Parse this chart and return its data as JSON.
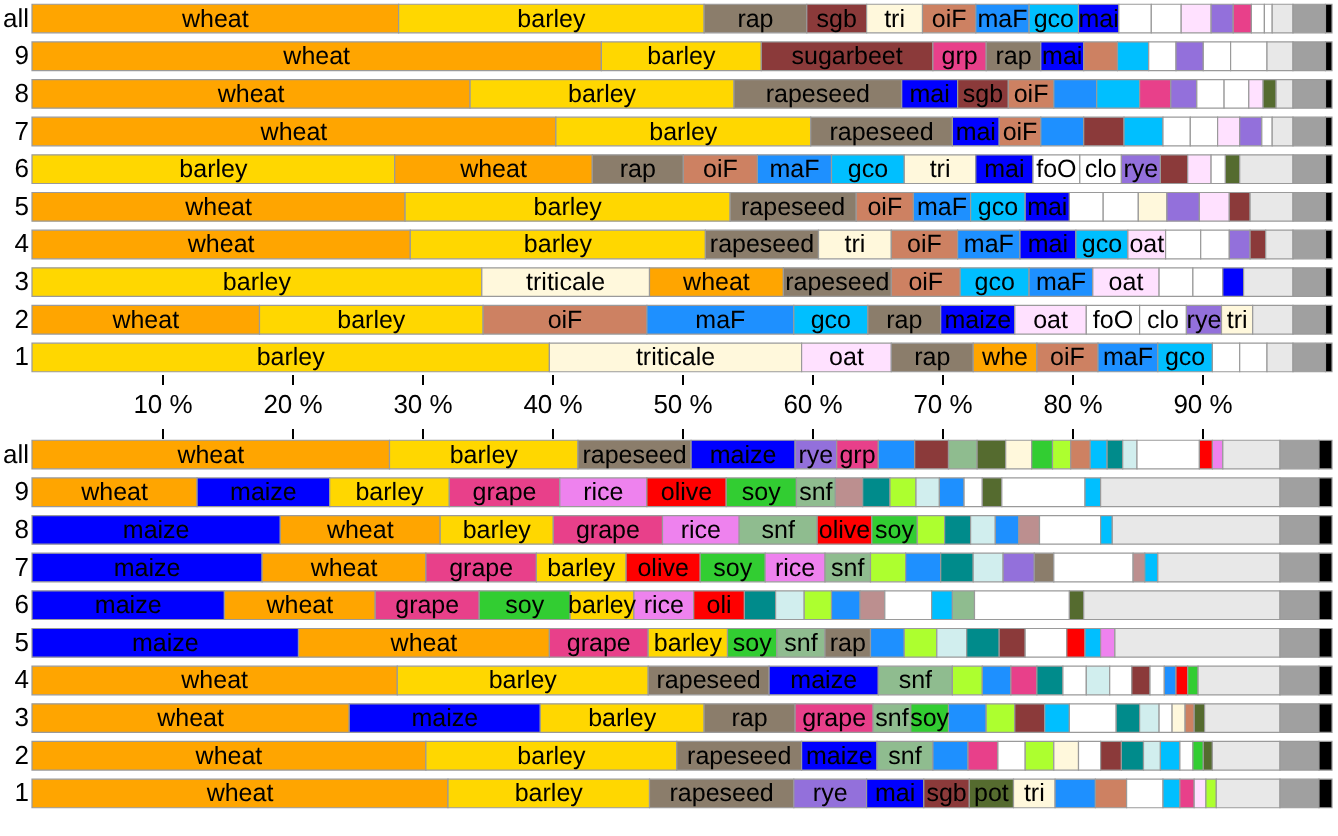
{
  "chart_data": [
    {
      "type": "bar",
      "orientation": "horizontal",
      "stacked": true,
      "categories": [
        "all",
        "9",
        "8",
        "7",
        "6",
        "5",
        "4",
        "3",
        "2",
        "1"
      ],
      "xlim": [
        0,
        100
      ],
      "xticks": [
        {
          "value": 10,
          "label": "10 %"
        },
        {
          "value": 20,
          "label": "20 %"
        },
        {
          "value": 30,
          "label": "30 %"
        },
        {
          "value": 40,
          "label": "40 %"
        },
        {
          "value": 50,
          "label": "50 %"
        },
        {
          "value": 60,
          "label": "60 %"
        },
        {
          "value": 70,
          "label": "70 %"
        },
        {
          "value": 80,
          "label": "80 %"
        },
        {
          "value": 90,
          "label": "90 %"
        }
      ],
      "series": [
        {
          "values": [
            28.2,
            43.8,
            33.7,
            40.3,
            27.9,
            28.7,
            29.1,
            34.6,
            17.5,
            39.8
          ],
          "colors": [
            "#ffa500",
            "#ffa500",
            "#ffa500",
            "#ffa500",
            "#ffd700",
            "#ffa500",
            "#ffa500",
            "#ffd700",
            "#ffa500",
            "#ffd700"
          ],
          "value_labels": [
            "wheat",
            "wheat",
            "wheat",
            "wheat",
            "barley",
            "wheat",
            "wheat",
            "barley",
            "wheat",
            "barley"
          ]
        },
        {
          "values": [
            23.5,
            12.3,
            20.3,
            19.6,
            15.2,
            25.0,
            22.7,
            12.9,
            17.2,
            19.4
          ],
          "colors": [
            "#ffd700",
            "#ffd700",
            "#ffd700",
            "#ffd700",
            "#ffa500",
            "#ffd700",
            "#ffd700",
            "#fff8dc",
            "#ffd700",
            "#fff8dc"
          ],
          "value_labels": [
            "barley",
            "barley",
            "barley",
            "barley",
            "wheat",
            "barley",
            "barley",
            "triticale",
            "barley",
            "triticale"
          ]
        },
        {
          "values": [
            7.9,
            13.2,
            12.9,
            10.9,
            7.0,
            9.7,
            8.7,
            10.3,
            12.6,
            6.9
          ],
          "colors": [
            "#8b7d6b",
            "#8b3a3a",
            "#8b7d6b",
            "#8b7d6b",
            "#8b7d6b",
            "#8b7d6b",
            "#8b7d6b",
            "#ffa500",
            "#cd8162",
            "#ffe1ff"
          ],
          "value_labels": [
            "rap",
            "sugarbeet",
            "rapeseed",
            "rapeseed",
            "rap",
            "rapeseed",
            "rapeseed",
            "wheat",
            "oiF",
            "oat"
          ]
        },
        {
          "values": [
            4.6,
            4.1,
            4.3,
            3.6,
            5.7,
            4.4,
            5.6,
            8.3,
            11.3,
            6.3
          ],
          "colors": [
            "#8b3a3a",
            "#e8408a",
            "#0000ff",
            "#0000ff",
            "#cd8162",
            "#cd8162",
            "#fff8dc",
            "#8b7d6b",
            "#1e90ff",
            "#8b7d6b"
          ],
          "value_labels": [
            "sgb",
            "grp",
            "mai",
            "mai",
            "oiF",
            "oiF",
            "tri",
            "rapeseed",
            "maF",
            "rap"
          ]
        },
        {
          "values": [
            4.3,
            4.2,
            3.9,
            3.2,
            5.7,
            4.4,
            5.1,
            5.3,
            5.7,
            4.9
          ],
          "colors": [
            "#fff8dc",
            "#8b7d6b",
            "#8b3a3a",
            "#cd8162",
            "#1e90ff",
            "#1e90ff",
            "#cd8162",
            "#cd8162",
            "#00bfff",
            "#ffa500"
          ],
          "value_labels": [
            "tri",
            "rap",
            "sgb",
            "oiF",
            "maF",
            "maF",
            "oiF",
            "oiF",
            "gco",
            "whe"
          ]
        },
        {
          "values": [
            4.1,
            3.3,
            3.5,
            3.3,
            5.6,
            4.2,
            4.8,
            5.3,
            5.6,
            4.7
          ],
          "colors": [
            "#cd8162",
            "#0000ff",
            "#cd8162",
            "#1e90ff",
            "#00bfff",
            "#00bfff",
            "#1e90ff",
            "#00bfff",
            "#8b7d6b",
            "#cd8162"
          ],
          "value_labels": [
            "oiF",
            "mai",
            "oiF",
            null,
            "gco",
            "gco",
            "maF",
            "gco",
            "rap",
            "oiF"
          ]
        },
        {
          "values": [
            4.1,
            2.6,
            3.3,
            3.1,
            5.5,
            3.4,
            4.3,
            4.9,
            5.7,
            4.6
          ],
          "colors": [
            "#1e90ff",
            "#cd8162",
            "#1e90ff",
            "#8b3a3a",
            "#fff8dc",
            "#0000ff",
            "#0000ff",
            "#1e90ff",
            "#0000ff",
            "#1e90ff"
          ],
          "value_labels": [
            "maF",
            null,
            null,
            null,
            "tri",
            "mai",
            "mai",
            "maF",
            "maize",
            "maF"
          ]
        },
        {
          "values": [
            3.8,
            2.4,
            3.3,
            3.0,
            4.4,
            2.6,
            4.0,
            5.1,
            5.5,
            4.2
          ],
          "colors": [
            "#00bfff",
            "#00bfff",
            "#00bfff",
            "#00bfff",
            "#0000ff",
            "#ffffff",
            "#00bfff",
            "#ffe1ff",
            "#ffe1ff",
            "#00bfff"
          ],
          "value_labels": [
            "gco",
            null,
            null,
            null,
            "mai",
            null,
            "gco",
            "oat",
            "oat",
            "gco"
          ]
        },
        {
          "values": [
            3.1,
            2.1,
            2.4,
            2.1,
            3.6,
            2.7,
            2.9,
            2.6,
            4.1,
            2.1
          ],
          "colors": [
            "#0000ff",
            "#ffffff",
            "#e8408a",
            "#ffffff",
            "#ffffff",
            "#ffffff",
            "#ffe1ff",
            "#ffffff",
            "#ffffff",
            "#ffffff"
          ],
          "value_labels": [
            "mai",
            null,
            null,
            null,
            "foO",
            null,
            "oat",
            null,
            "foO",
            null
          ]
        },
        {
          "values": [
            2.5,
            2.1,
            2.0,
            2.1,
            3.2,
            2.2,
            2.7,
            2.3,
            3.6,
            2.1
          ],
          "colors": [
            "#ffffff",
            "#9370db",
            "#9370db",
            "#ffffff",
            "#ffffff",
            "#fff8dc",
            "#ffffff",
            "#ffffff",
            "#ffffff",
            "#ffffff"
          ],
          "value_labels": [
            null,
            null,
            null,
            null,
            "clo",
            null,
            null,
            null,
            "clo",
            null
          ]
        },
        {
          "values": [
            2.3,
            2.1,
            2.1,
            1.7,
            3.0,
            2.5,
            2.2,
            1.6,
            2.7,
            null
          ],
          "colors": [
            "#ffffff",
            "#ffffff",
            "#ffffff",
            "#ffe1ff",
            "#9370db",
            "#9370db",
            "#ffffff",
            "#0000ff",
            "#9370db",
            null
          ],
          "value_labels": [
            null,
            null,
            null,
            null,
            "rye",
            null,
            null,
            null,
            "rye",
            null
          ]
        },
        {
          "values": [
            2.3,
            2.8,
            1.9,
            1.7,
            2.1,
            2.3,
            1.6,
            null,
            2.4,
            null
          ],
          "colors": [
            "#ffe1ff",
            "#ffffff",
            "#ffffff",
            "#9370db",
            "#8b3a3a",
            "#ffe1ff",
            "#9370db",
            null,
            "#fff8dc",
            null
          ],
          "value_labels": [
            null,
            null,
            null,
            null,
            null,
            null,
            null,
            null,
            "tri",
            null
          ]
        },
        {
          "values": [
            1.7,
            null,
            1.1,
            0.8,
            1.8,
            1.6,
            1.2,
            null,
            null,
            null
          ],
          "colors": [
            "#9370db",
            null,
            "#ffe1ff",
            "#ffffff",
            "#ffe1ff",
            "#8b3a3a",
            "#8b3a3a",
            null,
            null,
            null
          ]
        },
        {
          "values": [
            1.4,
            null,
            1.0,
            null,
            1.1,
            null,
            null,
            null,
            null,
            null
          ],
          "colors": [
            "#e8408a",
            null,
            "#556b2f",
            null,
            "#ffffff",
            null,
            null,
            null,
            null,
            null
          ]
        },
        {
          "values": [
            1.0,
            null,
            null,
            null,
            1.1,
            null,
            null,
            null,
            null,
            null
          ],
          "colors": [
            "#ffffff",
            null,
            null,
            null,
            "#556b2f",
            null,
            null,
            null,
            null,
            null
          ]
        },
        {
          "values": [
            0.6,
            null,
            null,
            null,
            null,
            null,
            null,
            null,
            null,
            null
          ],
          "colors": [
            "#ffffff",
            null,
            null,
            null,
            null,
            null,
            null,
            null,
            null,
            null
          ]
        },
        {
          "values": [
            1.6,
            2.0,
            1.3,
            1.6,
            4.1,
            3.3,
            2.1,
            3.8,
            3.1,
            2.0
          ],
          "colors": [
            "#e8e8e8",
            "#e8e8e8",
            "#e8e8e8",
            "#e8e8e8",
            "#e8e8e8",
            "#e8e8e8",
            "#e8e8e8",
            "#e8e8e8",
            "#e8e8e8",
            "#e8e8e8"
          ]
        },
        {
          "values": [
            2.5,
            2.5,
            2.5,
            2.5,
            2.5,
            2.5,
            2.5,
            2.5,
            2.5,
            2.5
          ],
          "colors": [
            "#a0a0a0",
            "#a0a0a0",
            "#a0a0a0",
            "#a0a0a0",
            "#a0a0a0",
            "#a0a0a0",
            "#a0a0a0",
            "#a0a0a0",
            "#a0a0a0",
            "#a0a0a0"
          ]
        },
        {
          "values": [
            0.5,
            0.5,
            0.5,
            0.5,
            0.5,
            0.5,
            0.5,
            0.5,
            0.5,
            0.5
          ],
          "colors": [
            "#000000",
            "#000000",
            "#000000",
            "#000000",
            "#000000",
            "#000000",
            "#000000",
            "#000000",
            "#000000",
            "#000000"
          ]
        }
      ]
    },
    {
      "type": "bar",
      "orientation": "horizontal",
      "stacked": true,
      "tick_labels": "y",
      "categories": [
        "all",
        "9",
        "8",
        "7",
        "6",
        "5",
        "4",
        "3",
        "2",
        "1"
      ],
      "xlim": [
        0,
        100
      ],
      "xticks": [
        {
          "value": 10,
          "label": null
        },
        {
          "value": 20,
          "label": null
        },
        {
          "value": 30,
          "label": null
        },
        {
          "value": 40,
          "label": null
        },
        {
          "value": 50,
          "label": null
        },
        {
          "value": 60,
          "label": null
        },
        {
          "value": 70,
          "label": null
        },
        {
          "value": 80,
          "label": null
        },
        {
          "value": 90,
          "label": null
        }
      ],
      "series": [
        {
          "values": [
            27.5,
            12.7,
            19.1,
            17.7,
            14.8,
            20.5,
            28.1,
            24.4,
            30.3,
            32.0
          ],
          "colors": [
            "#ffa500",
            "#ffa500",
            "#0000ff",
            "#0000ff",
            "#0000ff",
            "#0000ff",
            "#ffa500",
            "#ffa500",
            "#ffa500",
            "#ffa500"
          ],
          "value_labels": [
            "wheat",
            "wheat",
            "maize",
            "maize",
            "maize",
            "maize",
            "wheat",
            "wheat",
            "wheat",
            "wheat"
          ]
        },
        {
          "values": [
            14.5,
            10.2,
            12.3,
            12.6,
            11.6,
            19.3,
            19.3,
            14.7,
            19.3,
            15.5
          ],
          "colors": [
            "#ffd700",
            "#0000ff",
            "#ffa500",
            "#ffa500",
            "#ffa500",
            "#ffa500",
            "#ffd700",
            "#0000ff",
            "#ffd700",
            "#ffd700"
          ],
          "value_labels": [
            "barley",
            "maize",
            "wheat",
            "wheat",
            "wheat",
            "wheat",
            "barley",
            "maize",
            "barley",
            "barley"
          ]
        },
        {
          "values": [
            8.7,
            9.2,
            8.7,
            8.5,
            8.0,
            7.6,
            9.3,
            12.6,
            9.6,
            11.1
          ],
          "colors": [
            "#8b7d6b",
            "#ffd700",
            "#ffd700",
            "#e8408a",
            "#e8408a",
            "#e8408a",
            "#8b7d6b",
            "#ffd700",
            "#8b7d6b",
            "#8b7d6b"
          ],
          "value_labels": [
            "rapeseed",
            "barley",
            "barley",
            "grape",
            "grape",
            "grape",
            "rapeseed",
            "barley",
            "rapeseed",
            "rapeseed"
          ]
        },
        {
          "values": [
            8.0,
            8.5,
            8.4,
            6.9,
            7.0,
            6.1,
            8.4,
            7.0,
            5.8,
            5.6
          ],
          "colors": [
            "#0000ff",
            "#e8408a",
            "#e8408a",
            "#ffd700",
            "#32cd32",
            "#ffd700",
            "#0000ff",
            "#8b7d6b",
            "#0000ff",
            "#9370db"
          ],
          "value_labels": [
            "maize",
            "grape",
            "grape",
            "barley",
            "soy",
            "barley",
            "maize",
            "rap",
            "maize",
            "rye"
          ]
        },
        {
          "values": [
            3.2,
            6.7,
            5.9,
            5.7,
            4.9,
            3.8,
            5.7,
            6.0,
            4.3,
            4.4
          ],
          "colors": [
            "#9370db",
            "#ee82ee",
            "#ee82ee",
            "#ff0000",
            "#ffd700",
            "#32cd32",
            "#8fbc8f",
            "#e8408a",
            "#8fbc8f",
            "#0000ff"
          ],
          "value_labels": [
            "rye",
            "rice",
            "rice",
            "olive",
            "barley",
            "soy",
            "snf",
            "grape",
            "snf",
            "mai"
          ]
        },
        {
          "values": [
            3.2,
            6.1,
            6.0,
            5.0,
            4.6,
            3.7,
            2.3,
            2.9,
            2.7,
            3.5
          ],
          "colors": [
            "#e8408a",
            "#ff0000",
            "#8fbc8f",
            "#32cd32",
            "#ee82ee",
            "#8fbc8f",
            "#adff2f",
            "#8fbc8f",
            "#1e90ff",
            "#8b3a3a"
          ],
          "value_labels": [
            "grp",
            "olive",
            "snf",
            "soy",
            "rice",
            "snf",
            null,
            "snf",
            null,
            "sgb"
          ]
        },
        {
          "values": [
            2.8,
            5.4,
            4.2,
            4.6,
            3.9,
            3.5,
            2.2,
            2.9,
            2.3,
            3.4
          ],
          "colors": [
            "#1e90ff",
            "#32cd32",
            "#ff0000",
            "#ee82ee",
            "#ff0000",
            "#8b7d6b",
            "#1e90ff",
            "#32cd32",
            "#e8408a",
            "#556b2f"
          ],
          "value_labels": [
            null,
            "soy",
            "olive",
            "rice",
            "oli",
            "rap",
            null,
            "soy",
            null,
            "pot"
          ]
        },
        {
          "values": [
            2.6,
            3.0,
            3.5,
            3.5,
            2.4,
            2.6,
            2.0,
            2.9,
            2.1,
            3.2
          ],
          "colors": [
            "#8b3a3a",
            "#8fbc8f",
            "#32cd32",
            "#8fbc8f",
            "#008b8b",
            "#1e90ff",
            "#e8408a",
            "#1e90ff",
            "#ffffff",
            "#fff8dc"
          ],
          "value_labels": [
            null,
            "snf",
            "soy",
            "snf",
            null,
            null,
            null,
            null,
            null,
            "tri"
          ]
        },
        {
          "values": [
            2.2,
            2.1,
            2.1,
            2.7,
            2.2,
            2.5,
            2.0,
            2.2,
            2.2,
            3.1
          ],
          "colors": [
            "#8fbc8f",
            "#bc8f8f",
            "#adff2f",
            "#adff2f",
            "#d1eeee",
            "#adff2f",
            "#008b8b",
            "#adff2f",
            "#adff2f",
            "#1e90ff"
          ]
        },
        {
          "values": [
            2.2,
            2.1,
            2.0,
            2.7,
            2.1,
            2.3,
            1.8,
            2.3,
            1.9,
            2.4
          ],
          "colors": [
            "#556b2f",
            "#008b8b",
            "#008b8b",
            "#1e90ff",
            "#adff2f",
            "#d1eeee",
            "#ffffff",
            "#8b3a3a",
            "#fff8dc",
            "#cd8162"
          ]
        },
        {
          "values": [
            2.0,
            2.0,
            1.9,
            2.5,
            2.2,
            2.5,
            1.8,
            1.9,
            1.7,
            2.8
          ],
          "colors": [
            "#fff8dc",
            "#adff2f",
            "#d1eeee",
            "#008b8b",
            "#1e90ff",
            "#008b8b",
            "#d1eeee",
            "#00bfff",
            "#ffffff",
            "#ffffff"
          ]
        },
        {
          "values": [
            1.6,
            1.8,
            1.8,
            2.3,
            1.9,
            2.0,
            1.7,
            3.6,
            1.6,
            1.3
          ],
          "colors": [
            "#32cd32",
            "#d1eeee",
            "#1e90ff",
            "#d1eeee",
            "#bc8f8f",
            "#8b3a3a",
            "#ffffff",
            "#ffffff",
            "#8b3a3a",
            "#00bfff"
          ]
        },
        {
          "values": [
            1.4,
            1.9,
            1.6,
            2.4,
            3.6,
            3.2,
            1.4,
            1.8,
            1.7,
            1.1
          ],
          "colors": [
            "#adff2f",
            "#1e90ff",
            "#bc8f8f",
            "#9370db",
            "#ffffff",
            "#ffffff",
            "#8b3a3a",
            "#008b8b",
            "#008b8b",
            "#e8408a"
          ]
        },
        {
          "values": [
            1.5,
            1.4,
            4.7,
            1.5,
            1.6,
            1.4,
            1.1,
            1.5,
            1.3,
            0.9
          ],
          "colors": [
            "#cd8162",
            "#ffffff",
            "#ffffff",
            "#8b7d6b",
            "#00bfff",
            "#ff0000",
            "#ffffff",
            "#d1eeee",
            "#d1eeee",
            "#ffe1ff"
          ]
        },
        {
          "values": [
            1.3,
            1.5,
            0.9,
            6.1,
            1.7,
            1.2,
            0.9,
            1.0,
            1.5,
            0.8
          ],
          "colors": [
            "#00bfff",
            "#556b2f",
            "#00bfff",
            "#ffffff",
            "#8fbc8f",
            "#00bfff",
            "#1e90ff",
            "#ffffff",
            "#00bfff",
            "#adff2f"
          ]
        },
        {
          "values": [
            1.2,
            6.4,
            null,
            0.9,
            7.3,
            1.1,
            0.9,
            1.0,
            1.0,
            null
          ],
          "colors": [
            "#008b8b",
            "#ffffff",
            null,
            "#bc8f8f",
            "#ffffff",
            "#ee82ee",
            "#ff0000",
            "#fff8dc",
            "#ffffff",
            null
          ]
        },
        {
          "values": [
            1.1,
            1.2,
            null,
            1.0,
            1.1,
            null,
            0.8,
            0.7,
            0.8,
            null
          ],
          "colors": [
            "#d1eeee",
            "#00bfff",
            null,
            "#00bfff",
            "#556b2f",
            null,
            "#32cd32",
            "#cd8162",
            "#32cd32",
            null
          ]
        },
        {
          "values": [
            4.8,
            null,
            null,
            null,
            null,
            null,
            null,
            0.8,
            0.7,
            null
          ],
          "colors": [
            "#ffffff",
            null,
            null,
            null,
            null,
            null,
            null,
            "#556b2f",
            "#556b2f",
            null
          ]
        },
        {
          "values": [
            1.0,
            null,
            null,
            null,
            null,
            null,
            null,
            null,
            null,
            null
          ],
          "colors": [
            "#ff0000",
            null,
            null,
            null,
            null,
            null,
            null,
            null,
            null,
            null
          ]
        },
        {
          "values": [
            0.8,
            null,
            null,
            null,
            null,
            null,
            null,
            null,
            null,
            null
          ],
          "colors": [
            "#ee82ee",
            null,
            null,
            null,
            null,
            null,
            null,
            null,
            null,
            null
          ]
        },
        {
          "values": [
            4.4,
            13.8,
            12.9,
            9.4,
            15.1,
            12.7,
            6.3,
            5.8,
            5.2,
            4.9
          ],
          "colors": [
            "#e8e8e8",
            "#e8e8e8",
            "#e8e8e8",
            "#e8e8e8",
            "#e8e8e8",
            "#e8e8e8",
            "#e8e8e8",
            "#e8e8e8",
            "#e8e8e8",
            "#e8e8e8"
          ]
        },
        {
          "values": [
            3.0,
            3.0,
            3.0,
            3.0,
            3.0,
            3.0,
            3.0,
            3.0,
            3.0,
            3.0
          ],
          "colors": [
            "#a0a0a0",
            "#a0a0a0",
            "#a0a0a0",
            "#a0a0a0",
            "#a0a0a0",
            "#a0a0a0",
            "#a0a0a0",
            "#a0a0a0",
            "#a0a0a0",
            "#a0a0a0"
          ]
        },
        {
          "values": [
            1.0,
            1.0,
            1.0,
            1.0,
            1.0,
            1.0,
            1.0,
            1.0,
            1.0,
            1.0
          ],
          "colors": [
            "#000000",
            "#000000",
            "#000000",
            "#000000",
            "#000000",
            "#000000",
            "#000000",
            "#000000",
            "#000000",
            "#000000"
          ]
        }
      ]
    }
  ]
}
